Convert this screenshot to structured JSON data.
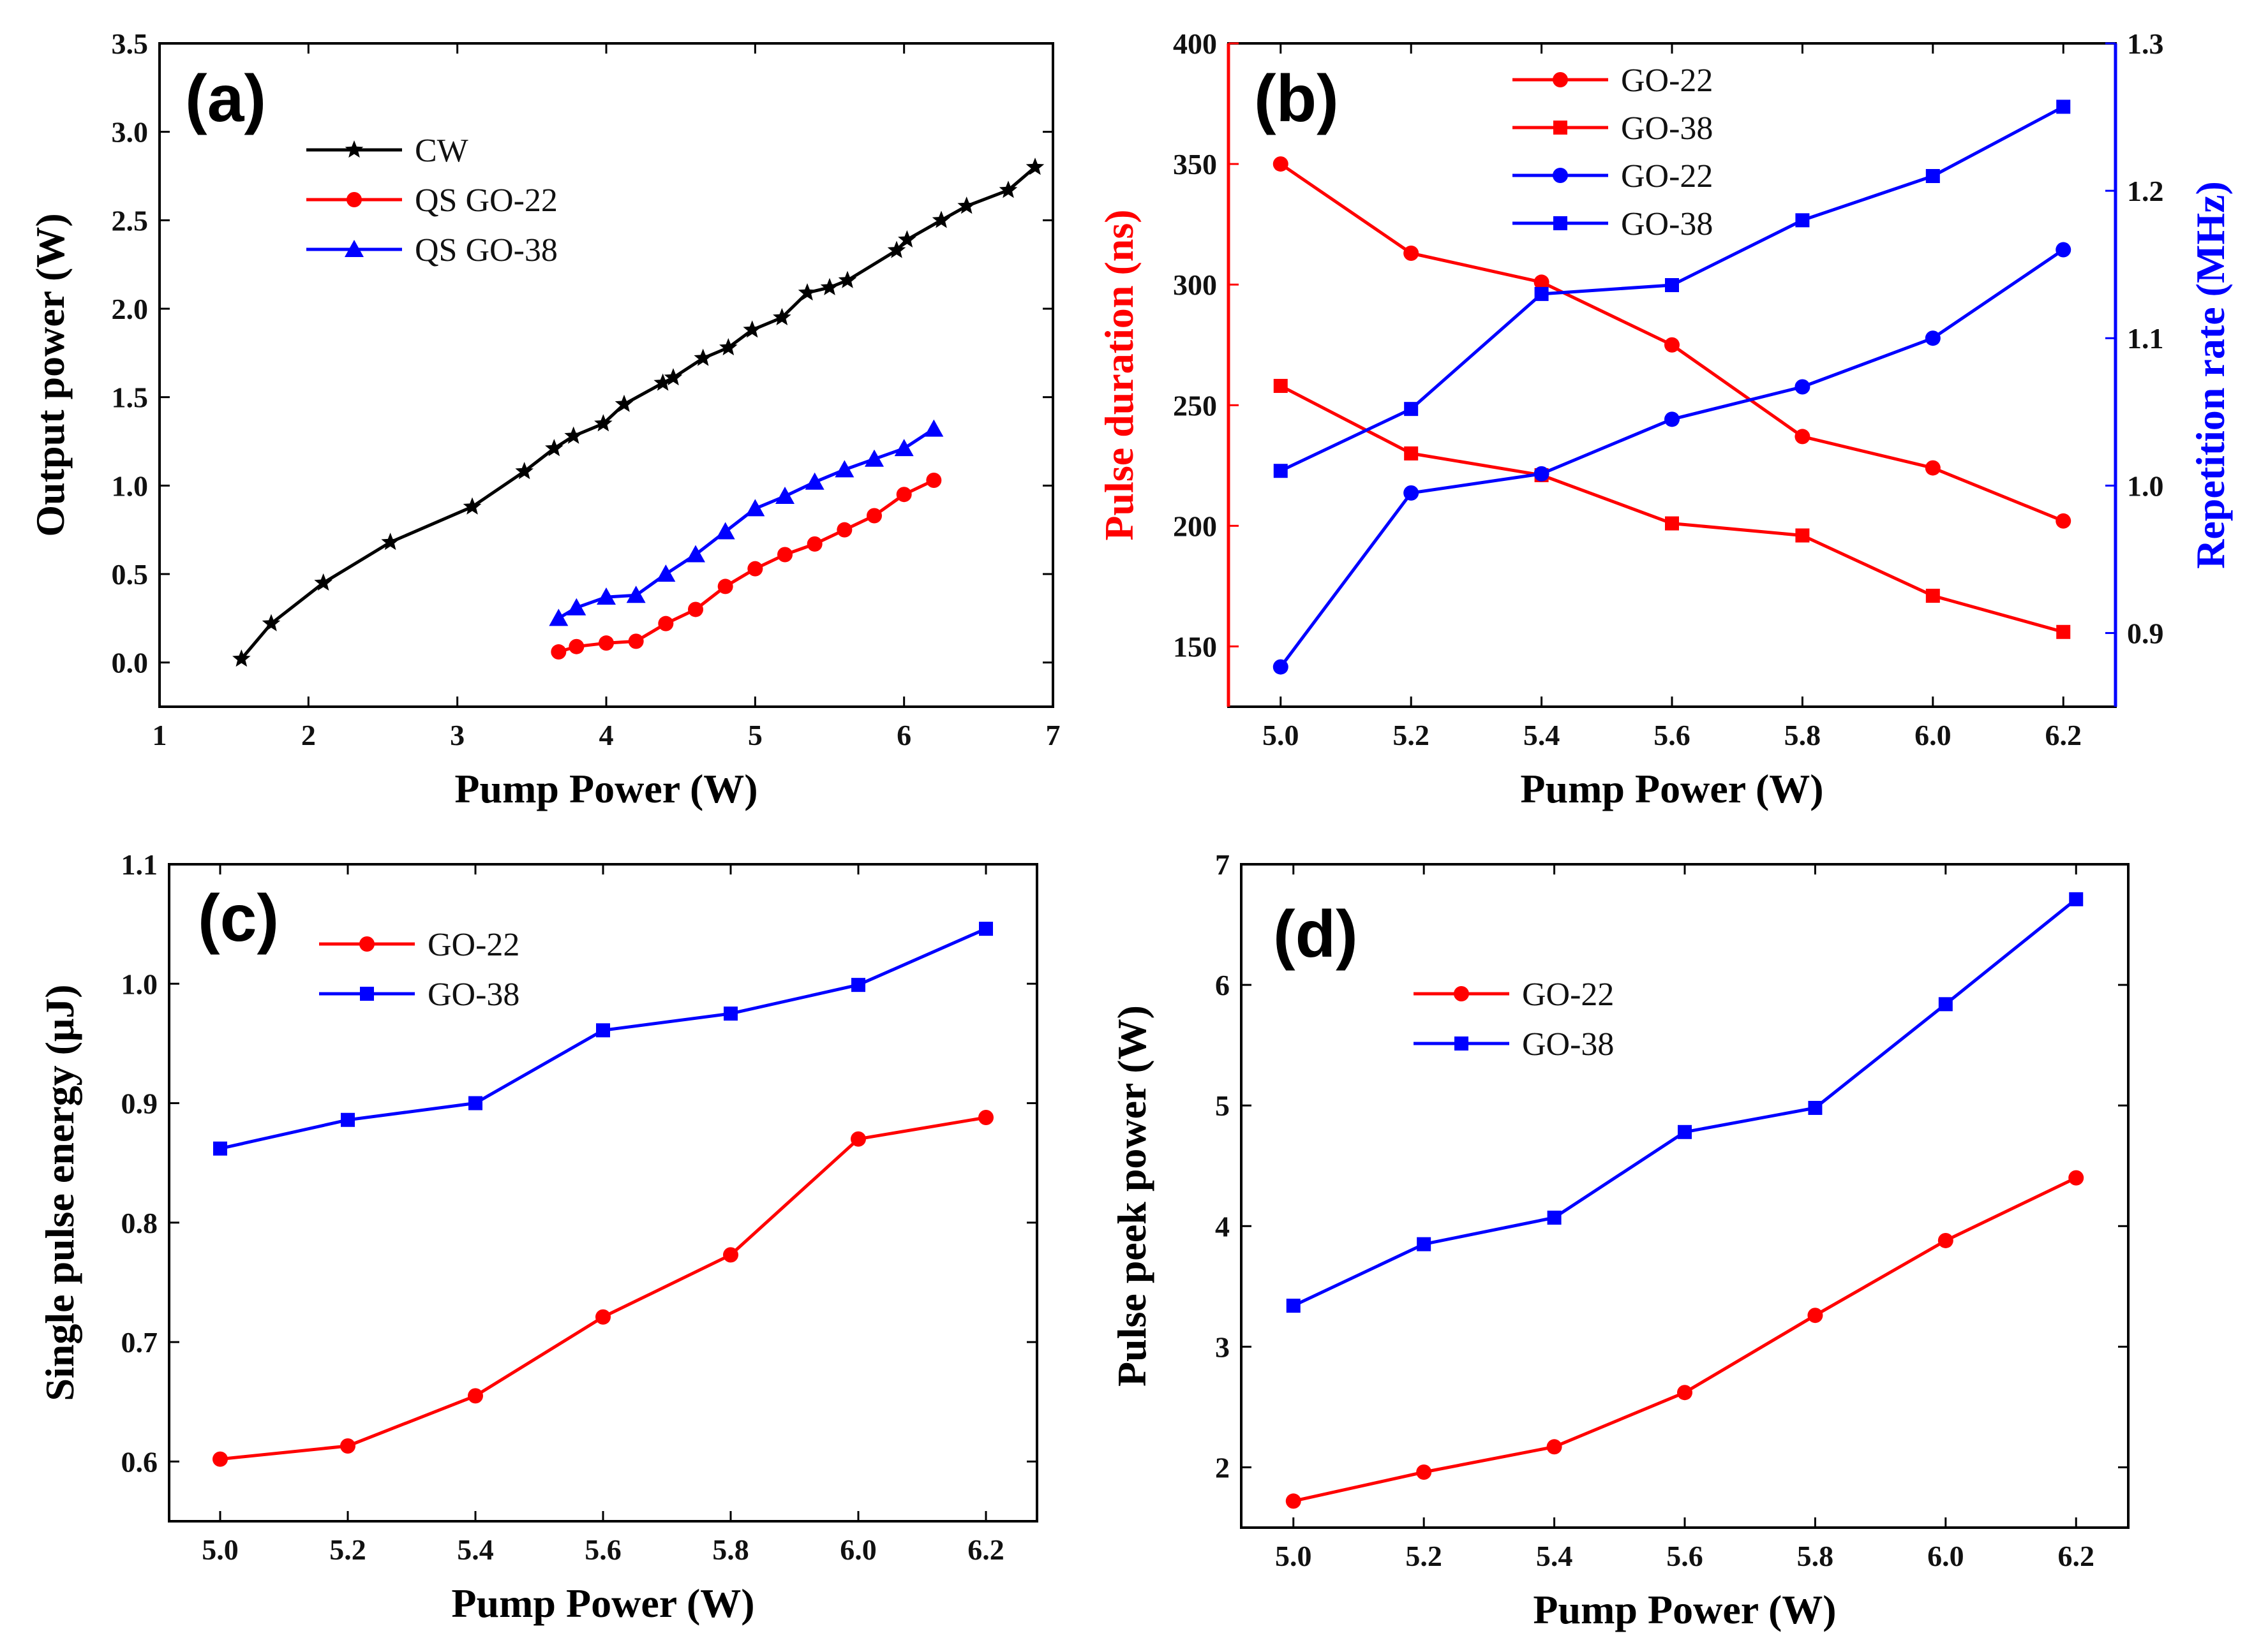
{
  "chart_data": [
    {
      "type": "line",
      "panel_label": "(a)",
      "xlabel": "Pump Power (W)",
      "ylabel": "Output power (W)",
      "xlim": [
        1,
        7
      ],
      "ylim": [
        -0.25,
        3.5
      ],
      "xticks": [
        1,
        2,
        3,
        4,
        5,
        6,
        7
      ],
      "xtick_labels": [
        "1",
        "2",
        "3",
        "4",
        "5",
        "6",
        "7"
      ],
      "yticks": [
        0.0,
        0.5,
        1.0,
        1.5,
        2.0,
        2.5,
        3.0,
        3.5
      ],
      "ytick_labels": [
        "0.0",
        "0.5",
        "1.0",
        "1.5",
        "2.0",
        "2.5",
        "3.0",
        "3.5"
      ],
      "legend_position": "upper-left",
      "series": [
        {
          "name": "CW",
          "color": "#000000",
          "marker": "star",
          "x": [
            1.55,
            1.75,
            2.1,
            2.55,
            3.1,
            3.45,
            3.65,
            3.78,
            3.98,
            4.12,
            4.38,
            4.45,
            4.65,
            4.82,
            4.98,
            5.18,
            5.35,
            5.5,
            5.62,
            5.95,
            6.02,
            6.25,
            6.42,
            6.7,
            6.88
          ],
          "values": [
            0.02,
            0.22,
            0.45,
            0.68,
            0.88,
            1.08,
            1.21,
            1.28,
            1.35,
            1.46,
            1.58,
            1.61,
            1.72,
            1.78,
            1.88,
            1.95,
            2.09,
            2.12,
            2.16,
            2.33,
            2.39,
            2.5,
            2.58,
            2.67,
            2.8
          ]
        },
        {
          "name": "QS GO-22",
          "color": "#ff0000",
          "marker": "circle",
          "x": [
            3.68,
            3.8,
            4.0,
            4.2,
            4.4,
            4.6,
            4.8,
            5.0,
            5.2,
            5.4,
            5.6,
            5.8,
            6.0,
            6.2
          ],
          "values": [
            0.06,
            0.09,
            0.11,
            0.12,
            0.22,
            0.3,
            0.43,
            0.53,
            0.61,
            0.67,
            0.75,
            0.83,
            0.95,
            1.03
          ]
        },
        {
          "name": "QS GO-38",
          "color": "#0000ff",
          "marker": "triangle",
          "x": [
            3.68,
            3.8,
            4.0,
            4.2,
            4.4,
            4.6,
            4.8,
            5.0,
            5.2,
            5.4,
            5.6,
            5.8,
            6.0,
            6.2
          ],
          "values": [
            0.25,
            0.31,
            0.37,
            0.38,
            0.5,
            0.61,
            0.74,
            0.87,
            0.94,
            1.02,
            1.09,
            1.15,
            1.21,
            1.32
          ]
        }
      ]
    },
    {
      "type": "line",
      "panel_label": "(b)",
      "xlabel": "Pump Power (W)",
      "ylabel": "Pulse duration (ns)",
      "ylabel_right": "Repetition rate (MHz)",
      "ylabel_color": "#ff0000",
      "ylabel_right_color": "#0000ff",
      "xlim": [
        4.92,
        6.28
      ],
      "ylim": [
        125,
        400
      ],
      "ylim_right": [
        0.85,
        1.3
      ],
      "xticks": [
        5.0,
        5.2,
        5.4,
        5.6,
        5.8,
        6.0,
        6.2
      ],
      "xtick_labels": [
        "5.0",
        "5.2",
        "5.4",
        "5.6",
        "5.8",
        "6.0",
        "6.2"
      ],
      "yticks": [
        150,
        200,
        250,
        300,
        350,
        400
      ],
      "ytick_labels": [
        "150",
        "200",
        "250",
        "300",
        "350",
        "400"
      ],
      "yticks_right": [
        0.9,
        1.0,
        1.1,
        1.2,
        1.3
      ],
      "ytick_labels_right": [
        "0.9",
        "1.0",
        "1.1",
        "1.2",
        "1.3"
      ],
      "legend_position": "top-center",
      "categories": [
        5.0,
        5.2,
        5.4,
        5.6,
        5.8,
        6.0,
        6.2
      ],
      "series": [
        {
          "name": "GO-22",
          "axis": "left",
          "color": "#ff0000",
          "marker": "circle",
          "values": [
            350,
            313,
            301,
            275,
            237,
            224,
            202
          ]
        },
        {
          "name": "GO-38",
          "axis": "left",
          "color": "#ff0000",
          "marker": "square",
          "values": [
            258,
            230,
            221,
            201,
            196,
            171,
            156
          ]
        },
        {
          "name": "GO-22",
          "axis": "right",
          "color": "#0000ff",
          "marker": "circle",
          "values": [
            0.877,
            0.995,
            1.008,
            1.045,
            1.067,
            1.1,
            1.16
          ]
        },
        {
          "name": "GO-38",
          "axis": "right",
          "color": "#0000ff",
          "marker": "square",
          "values": [
            1.01,
            1.052,
            1.13,
            1.136,
            1.18,
            1.21,
            1.257
          ]
        }
      ]
    },
    {
      "type": "line",
      "panel_label": "(c)",
      "xlabel": "Pump Power (W)",
      "ylabel": "Single pulse energy (μJ)",
      "xlim": [
        4.92,
        6.28
      ],
      "ylim": [
        0.55,
        1.1
      ],
      "xticks": [
        5.0,
        5.2,
        5.4,
        5.6,
        5.8,
        6.0,
        6.2
      ],
      "xtick_labels": [
        "5.0",
        "5.2",
        "5.4",
        "5.6",
        "5.8",
        "6.0",
        "6.2"
      ],
      "yticks": [
        0.6,
        0.7,
        0.8,
        0.9,
        1.0,
        1.1
      ],
      "ytick_labels": [
        "0.6",
        "0.7",
        "0.8",
        "0.9",
        "1.0",
        "1.1"
      ],
      "legend_position": "upper-left",
      "categories": [
        5.0,
        5.2,
        5.4,
        5.6,
        5.8,
        6.0,
        6.2
      ],
      "series": [
        {
          "name": "GO-22",
          "color": "#ff0000",
          "marker": "circle",
          "values": [
            0.602,
            0.613,
            0.655,
            0.721,
            0.773,
            0.87,
            0.888
          ]
        },
        {
          "name": "GO-38",
          "color": "#0000ff",
          "marker": "square",
          "values": [
            0.862,
            0.886,
            0.9,
            0.961,
            0.975,
            0.999,
            1.046
          ]
        }
      ]
    },
    {
      "type": "line",
      "panel_label": "(d)",
      "xlabel": "Pump Power (W)",
      "ylabel": "Pulse peek power (W)",
      "xlim": [
        4.92,
        6.28
      ],
      "ylim": [
        1.5,
        7
      ],
      "xticks": [
        5.0,
        5.2,
        5.4,
        5.6,
        5.8,
        6.0,
        6.2
      ],
      "xtick_labels": [
        "5.0",
        "5.2",
        "5.4",
        "5.6",
        "5.8",
        "6.0",
        "6.2"
      ],
      "yticks": [
        2,
        3,
        4,
        5,
        6,
        7
      ],
      "ytick_labels": [
        "2",
        "3",
        "4",
        "5",
        "6",
        "7"
      ],
      "legend_position": "upper-left",
      "categories": [
        5.0,
        5.2,
        5.4,
        5.6,
        5.8,
        6.0,
        6.2
      ],
      "series": [
        {
          "name": "GO-22",
          "color": "#ff0000",
          "marker": "circle",
          "values": [
            1.72,
            1.96,
            2.17,
            2.62,
            3.26,
            3.88,
            4.4
          ]
        },
        {
          "name": "GO-38",
          "color": "#0000ff",
          "marker": "square",
          "values": [
            3.34,
            3.85,
            4.07,
            4.78,
            4.98,
            5.84,
            6.71
          ]
        }
      ]
    }
  ]
}
